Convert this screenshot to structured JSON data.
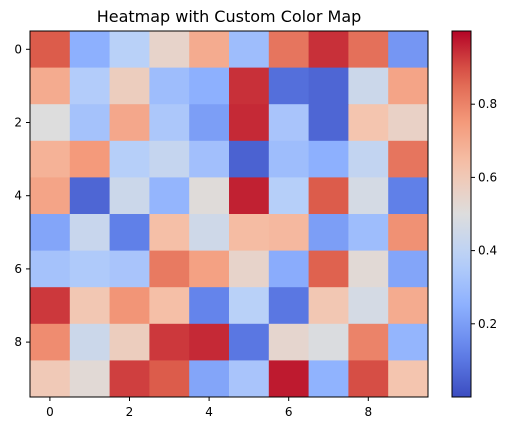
{
  "chart_data": {
    "type": "heatmap",
    "title": "Heatmap with Custom Color Map",
    "colormap": "coolwarm",
    "xlabel": "",
    "ylabel": "",
    "x_ticks": [
      0,
      2,
      4,
      6,
      8
    ],
    "y_ticks": [
      0,
      2,
      4,
      6,
      8
    ],
    "colorbar_ticks": [
      "0.2",
      "0.4",
      "0.6",
      "0.8"
    ],
    "vmin": 0.0,
    "vmax": 1.0,
    "values": [
      [
        0.88,
        0.25,
        0.38,
        0.55,
        0.7,
        0.3,
        0.83,
        0.94,
        0.84,
        0.18
      ],
      [
        0.7,
        0.36,
        0.58,
        0.3,
        0.25,
        0.94,
        0.08,
        0.06,
        0.44,
        0.72
      ],
      [
        0.5,
        0.32,
        0.71,
        0.34,
        0.2,
        0.95,
        0.33,
        0.06,
        0.62,
        0.56
      ],
      [
        0.68,
        0.75,
        0.37,
        0.42,
        0.31,
        0.05,
        0.3,
        0.25,
        0.41,
        0.83
      ],
      [
        0.72,
        0.06,
        0.44,
        0.27,
        0.51,
        0.96,
        0.37,
        0.88,
        0.47,
        0.12
      ],
      [
        0.22,
        0.43,
        0.12,
        0.64,
        0.45,
        0.65,
        0.66,
        0.2,
        0.3,
        0.77
      ],
      [
        0.32,
        0.35,
        0.33,
        0.82,
        0.73,
        0.55,
        0.24,
        0.87,
        0.52,
        0.22
      ],
      [
        0.93,
        0.61,
        0.76,
        0.64,
        0.13,
        0.38,
        0.1,
        0.61,
        0.47,
        0.7
      ],
      [
        0.78,
        0.44,
        0.58,
        0.93,
        0.95,
        0.1,
        0.54,
        0.49,
        0.8,
        0.27
      ],
      [
        0.6,
        0.52,
        0.92,
        0.88,
        0.22,
        0.33,
        0.97,
        0.26,
        0.9,
        0.62
      ]
    ]
  }
}
